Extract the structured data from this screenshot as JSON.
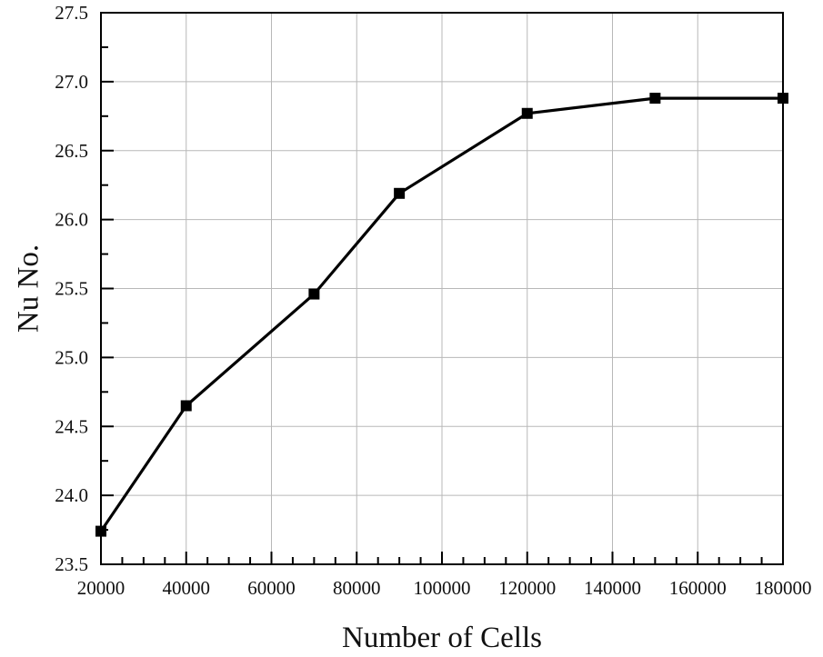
{
  "chart_data": {
    "type": "line",
    "title": "",
    "xlabel": "Number of Cells",
    "ylabel": "Nu No.",
    "xlim": [
      20000,
      180000
    ],
    "ylim": [
      23.5,
      27.5
    ],
    "x_ticks": [
      20000,
      40000,
      60000,
      80000,
      100000,
      120000,
      140000,
      160000,
      180000
    ],
    "x_tick_labels": [
      "20000",
      "40000",
      "60000",
      "80000",
      "100000",
      "120000",
      "140000",
      "160000",
      "180000"
    ],
    "y_ticks": [
      23.5,
      24.0,
      24.5,
      25.0,
      25.5,
      26.0,
      26.5,
      27.0,
      27.5
    ],
    "y_tick_labels": [
      "23.5",
      "24.0",
      "24.5",
      "25.0",
      "25.5",
      "26.0",
      "26.5",
      "27.0",
      "27.5"
    ],
    "grid": true,
    "legend": "none",
    "series": [
      {
        "marker": "square",
        "color": "#000000",
        "x": [
          20000,
          40000,
          70000,
          90000,
          120000,
          150000,
          180000
        ],
        "y": [
          23.74,
          24.65,
          25.46,
          26.19,
          26.77,
          26.88,
          26.88
        ]
      }
    ]
  }
}
